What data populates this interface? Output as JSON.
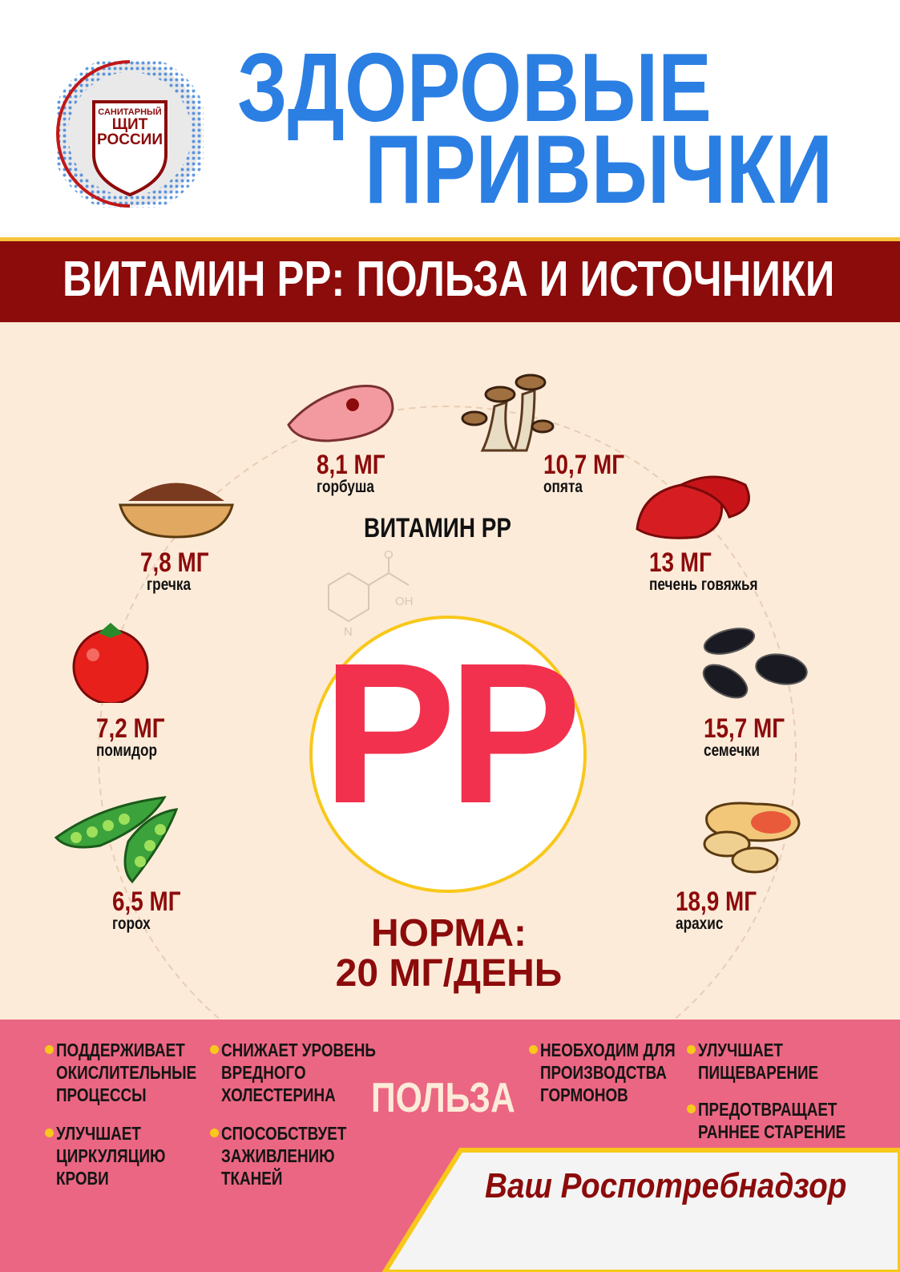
{
  "header": {
    "title_line1": "ЗДОРОВЫЕ",
    "title_line2": "ПРИВЫЧКИ",
    "logo": {
      "line1": "САНИТАРНЫЙ",
      "line2": "ЩИТ",
      "line3": "РОССИИ"
    }
  },
  "banner": {
    "text": "ВИТАМИН PP: ПОЛЬЗА И ИСТОЧНИКИ"
  },
  "center": {
    "label": "ВИТАМИН PP",
    "formula_o": "O",
    "formula_oh": "OH",
    "formula_n": "N",
    "big": "PP",
    "norm_line1": "НОРМА:",
    "norm_line2": "20 МГ/ДЕНЬ"
  },
  "sources": [
    {
      "value": "8,1 МГ",
      "name": "горбуша",
      "icon": "fish-steak-icon"
    },
    {
      "value": "10,7 МГ",
      "name": "опята",
      "icon": "mushroom-icon"
    },
    {
      "value": "13 МГ",
      "name": "печень говяжья",
      "icon": "liver-icon"
    },
    {
      "value": "15,7 МГ",
      "name": "семечки",
      "icon": "sunflower-seeds-icon"
    },
    {
      "value": "18,9 МГ",
      "name": "арахис",
      "icon": "peanut-icon"
    },
    {
      "value": "7,8 МГ",
      "name": "гречка",
      "icon": "buckwheat-bowl-icon"
    },
    {
      "value": "7,2 МГ",
      "name": "помидор",
      "icon": "tomato-icon"
    },
    {
      "value": "6,5 МГ",
      "name": "горох",
      "icon": "peas-icon"
    }
  ],
  "benefits": {
    "title": "ПОЛЬЗА",
    "items": [
      "ПОДДЕРЖИВАЕТ ОКИСЛИТЕЛЬНЫЕ ПРОЦЕССЫ",
      "УЛУЧШАЕТ ЦИРКУЛЯЦИЮ КРОВИ",
      "СНИЖАЕТ УРОВЕНЬ ВРЕДНОГО ХОЛЕСТЕРИНА",
      "СПОСОБСТВУЕТ ЗАЖИВЛЕНИЮ ТКАНЕЙ",
      "НЕОБХОДИМ ДЛЯ ПРОИЗВОДСТВА ГОРМОНОВ",
      "УЛУЧШАЕТ ПИЩЕВАРЕНИЕ",
      "ПРЕДОТВРАЩАЕТ РАННЕЕ СТАРЕНИЕ"
    ]
  },
  "footer": {
    "signature": "Ваш Роспотребнадзор"
  },
  "colors": {
    "blue": "#2b7fe3",
    "dark_red": "#8c0b0b",
    "pink": "#eb6682",
    "peach": "#fdebd9",
    "pp_red": "#f2314f",
    "yellow": "#f8c81a"
  }
}
